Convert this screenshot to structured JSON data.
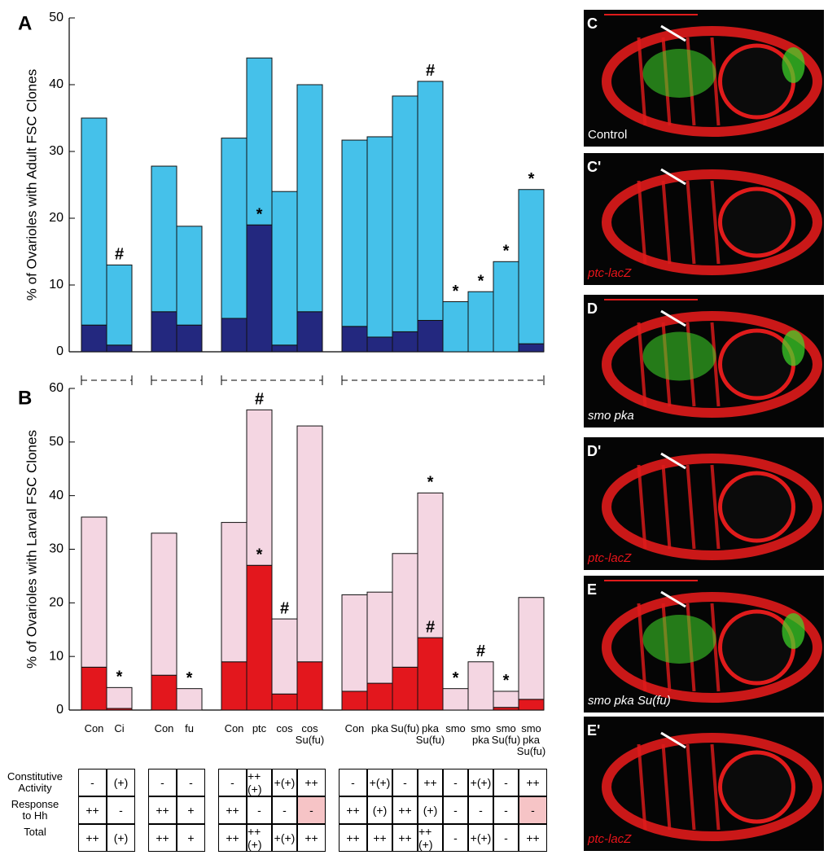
{
  "chart_data": [
    {
      "type": "bar",
      "stacked": true,
      "panel_label": "A",
      "ylabel": "% of Ovarioles with Adult FSC Clones",
      "categories": [
        null,
        null,
        null,
        null,
        null,
        null,
        null,
        null,
        null,
        null,
        null,
        null,
        null,
        null,
        null,
        null
      ],
      "ylim": [
        0,
        50
      ],
      "yticks": [
        0,
        10,
        20,
        30,
        40,
        50
      ],
      "series": [
        {
          "color": "#23287f",
          "values": [
            4,
            1,
            6,
            4,
            5,
            19,
            1,
            6,
            3.8,
            2.2,
            3,
            4.7,
            0,
            0,
            0,
            1.2
          ],
          "symbols": [
            null,
            null,
            null,
            null,
            null,
            "*",
            null,
            null,
            null,
            null,
            null,
            null,
            null,
            null,
            null,
            null
          ]
        },
        {
          "color": "#45c1ea",
          "values": [
            31,
            12,
            21.8,
            14.8,
            27,
            25,
            23,
            34,
            27.9,
            30,
            35.3,
            35.8,
            7.5,
            9,
            13.5,
            23.1
          ],
          "symbols": [
            null,
            "#",
            null,
            null,
            null,
            null,
            null,
            null,
            null,
            null,
            null,
            "#",
            "*",
            "*",
            "*",
            "*"
          ]
        }
      ]
    },
    {
      "type": "bar",
      "stacked": true,
      "panel_label": "B",
      "ylabel": "% of Ovarioles with Larval FSC Clones",
      "categories": [
        "Con",
        "Ci",
        "Con",
        "fu",
        "Con",
        "ptc",
        "cos",
        "cos\nSu(fu)",
        "Con",
        "pka",
        "Su(fu)",
        "pka\nSu(fu)",
        "smo",
        "smo\npka",
        "smo\nSu(fu)",
        "smo\npka\nSu(fu)"
      ],
      "ylim": [
        0,
        60
      ],
      "yticks": [
        0,
        10,
        20,
        30,
        40,
        50,
        60
      ],
      "series": [
        {
          "color": "#e3171d",
          "values": [
            8,
            0.3,
            6.5,
            0,
            9,
            27,
            3,
            9,
            3.5,
            5,
            8,
            13.5,
            0,
            0,
            0.5,
            2
          ],
          "symbols": [
            null,
            null,
            null,
            null,
            null,
            "*",
            null,
            null,
            null,
            null,
            null,
            "#",
            null,
            null,
            null,
            null
          ]
        },
        {
          "color": "#f4d6e2",
          "values": [
            28,
            3.9,
            26.5,
            4,
            26,
            29,
            14,
            44,
            18,
            17,
            21.2,
            27,
            4,
            9,
            3,
            19
          ],
          "symbols": [
            null,
            "*",
            null,
            "*",
            null,
            "#",
            "#",
            null,
            null,
            null,
            null,
            "*",
            "*",
            "#",
            "*",
            null
          ]
        }
      ]
    }
  ],
  "table": {
    "rows": [
      {
        "label": "Constitutive\nActivity",
        "cells": [
          "-",
          "(+)",
          "-",
          "-",
          "-",
          "++(+)",
          "+(+)",
          "++",
          "-",
          "+(+)",
          "-",
          "++",
          "-",
          "+(+)",
          "-",
          "++"
        ]
      },
      {
        "label": "Response\nto Hh",
        "cells": [
          "++",
          "-",
          "++",
          "+",
          "++",
          "-",
          "-",
          {
            "text": "-",
            "highlight": "#f6c4c6"
          },
          "++",
          "(+)",
          "++",
          "(+)",
          "-",
          "-",
          "-",
          {
            "text": "-",
            "highlight": "#f6c4c6"
          }
        ]
      },
      {
        "label": "Total",
        "cells": [
          "++",
          "(+)",
          "++",
          "+",
          "++",
          "++(+)",
          "+(+)",
          "++",
          "++",
          "++",
          "++",
          "++(+)",
          "-",
          "+(+)",
          "-",
          "++"
        ]
      }
    ]
  },
  "images": [
    {
      "label": "C",
      "caption": "Control",
      "caption_color": "#ffffff",
      "caption_italic": false,
      "colors": [
        "#e01b1b",
        "#3fdc2a"
      ]
    },
    {
      "label": "C'",
      "caption": "ptc-lacZ",
      "caption_color": "#e8141a",
      "caption_italic": true,
      "colors": [
        "#e01b1b"
      ]
    },
    {
      "label": "D",
      "caption": "smo pka",
      "caption_color": "#ffffff",
      "caption_italic": true,
      "colors": [
        "#e01b1b",
        "#3fdc2a"
      ]
    },
    {
      "label": "D'",
      "caption": "ptc-lacZ",
      "caption_color": "#e8141a",
      "caption_italic": true,
      "colors": [
        "#e01b1b"
      ]
    },
    {
      "label": "E",
      "caption": "smo pka Su(fu)",
      "caption_color": "#ffffff",
      "caption_italic": true,
      "colors": [
        "#e01b1b",
        "#3fdc2a"
      ]
    },
    {
      "label": "E'",
      "caption": "ptc-lacZ",
      "caption_color": "#e8141a",
      "caption_italic": true,
      "colors": [
        "#e01b1b"
      ]
    }
  ]
}
